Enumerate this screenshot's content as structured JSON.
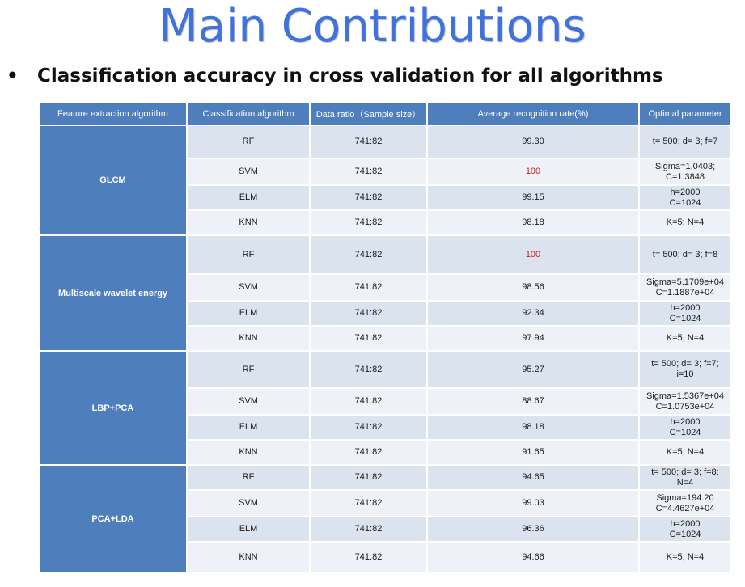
{
  "slide": {
    "title": "Main Contributions",
    "bullet": "•",
    "subtitle": "Classification accuracy in cross validation for all algorithms"
  },
  "table": {
    "headers": [
      "Feature extraction algorithm",
      "Classification algorithm",
      "Data ratio（Sample size）",
      "Average recognition rate(%)",
      "Optimal parameter"
    ],
    "groups": [
      {
        "name": "GLCM",
        "rows": [
          {
            "clf": "RF",
            "ratio": "741:82",
            "rate": "99.30",
            "param": "t= 500; d= 3; f=7"
          },
          {
            "clf": "SVM",
            "ratio": "741:82",
            "rate": "100",
            "param": "Sigma=1.0403;\nC=1.3848",
            "highlight": true
          },
          {
            "clf": "ELM",
            "ratio": "741:82",
            "rate": "99.15",
            "param": "h=2000\nC=1024"
          },
          {
            "clf": "KNN",
            "ratio": "741:82",
            "rate": "98.18",
            "param": "K=5; N=4"
          }
        ]
      },
      {
        "name": "Multiscale wavelet energy",
        "rows": [
          {
            "clf": "RF",
            "ratio": "741:82",
            "rate": "100",
            "param": "t= 500; d= 3; f=8",
            "highlight": true
          },
          {
            "clf": "SVM",
            "ratio": "741:82",
            "rate": "98.56",
            "param": "Sigma=5.1709e+04\nC=1.1887e+04"
          },
          {
            "clf": "ELM",
            "ratio": "741:82",
            "rate": "92.34",
            "param": "h=2000\nC=1024"
          },
          {
            "clf": "KNN",
            "ratio": "741:82",
            "rate": "97.94",
            "param": "K=5; N=4"
          }
        ]
      },
      {
        "name": "LBP+PCA",
        "rows": [
          {
            "clf": "RF",
            "ratio": "741:82",
            "rate": "95.27",
            "param": "t= 500; d= 3; f=7;\ni=10"
          },
          {
            "clf": "SVM",
            "ratio": "741:82",
            "rate": "88.67",
            "param": "Sigma=1.5367e+04\nC=1.0753e+04"
          },
          {
            "clf": "ELM",
            "ratio": "741:82",
            "rate": "98.18",
            "param": "h=2000\nC=1024"
          },
          {
            "clf": "KNN",
            "ratio": "741:82",
            "rate": "91.65",
            "param": "K=5; N=4"
          }
        ]
      },
      {
        "name": "PCA+LDA",
        "rows": [
          {
            "clf": "RF",
            "ratio": "741:82",
            "rate": "94.65",
            "param": "t= 500; d= 3; f=8;\nN=4"
          },
          {
            "clf": "SVM",
            "ratio": "741:82",
            "rate": "99.03",
            "param": "Sigma=194.20\nC=4.4627e+04"
          },
          {
            "clf": "ELM",
            "ratio": "741:82",
            "rate": "96.36",
            "param": "h=2000\nC=1024"
          },
          {
            "clf": "KNN",
            "ratio": "741:82",
            "rate": "94.66",
            "param": "K=5; N=4"
          }
        ]
      }
    ]
  }
}
